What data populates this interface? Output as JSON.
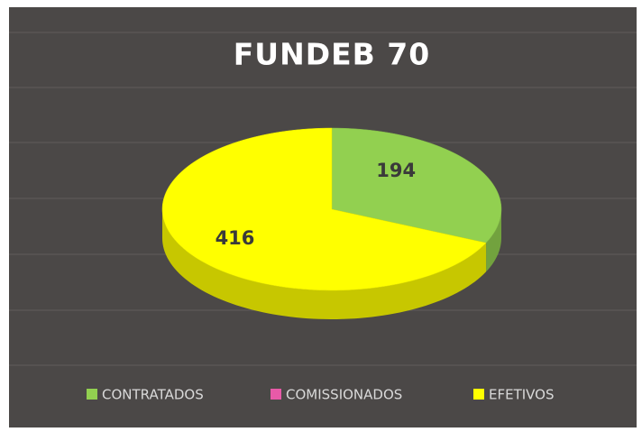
{
  "chart_data": {
    "type": "pie",
    "title": "FUNDEB 70",
    "categories": [
      "CONTRATADOS",
      "COMISSIONADOS",
      "EFETIVOS"
    ],
    "values": [
      194,
      0,
      416
    ],
    "colors": [
      "#92d050",
      "#e85aa8",
      "#ffff00"
    ],
    "legend": "bottom"
  }
}
